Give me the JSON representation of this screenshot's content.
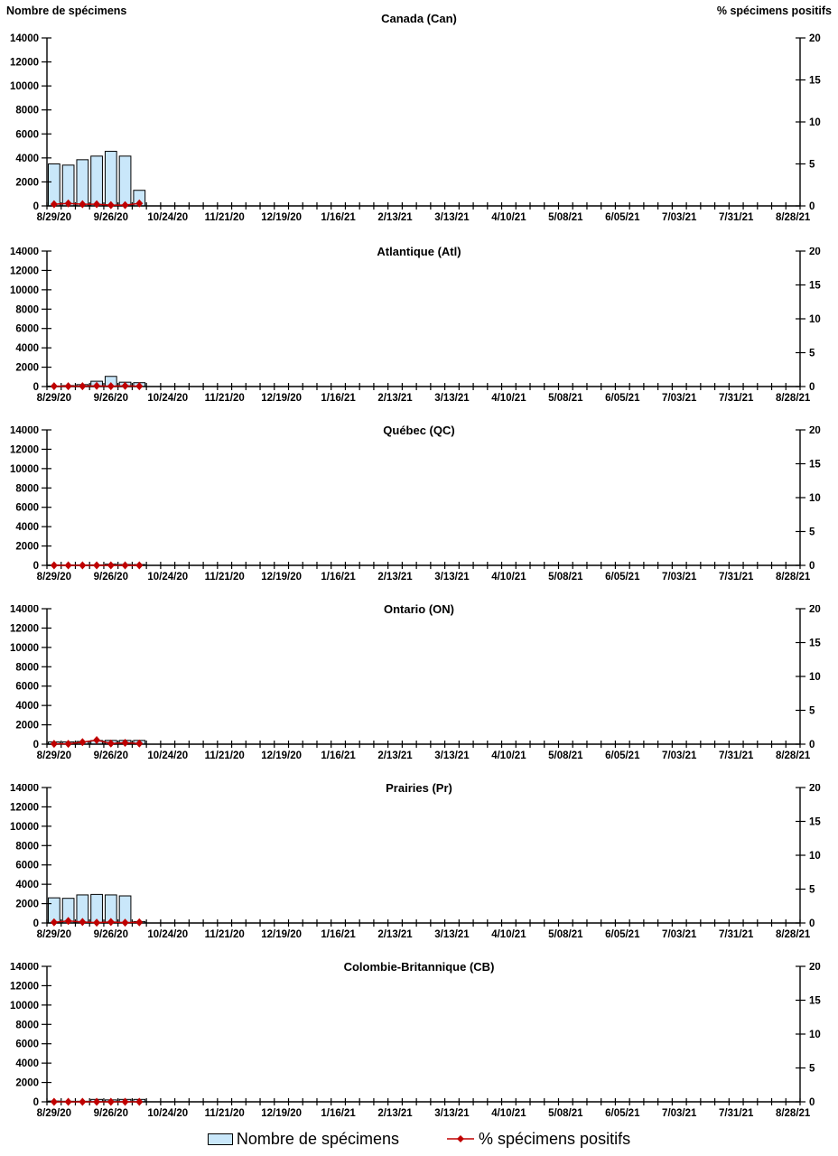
{
  "chart_data": {
    "type": "combo-bar-line",
    "panels_note": "Six stacked weekly surveillance panels sharing identical axes",
    "left_axis": {
      "title": "Nombre de spécimens",
      "min": 0,
      "max": 14000,
      "tick_step": 2000,
      "ticks": [
        0,
        2000,
        4000,
        6000,
        8000,
        10000,
        12000,
        14000
      ]
    },
    "right_axis": {
      "title": "% spécimens positifs",
      "min": 0,
      "max": 20,
      "tick_step": 5,
      "ticks": [
        0,
        5,
        10,
        15,
        20
      ]
    },
    "x_axis": {
      "weeks_total": 53,
      "label_every": 4,
      "labels": [
        "8/29/20",
        "9/26/20",
        "10/24/20",
        "11/21/20",
        "12/19/20",
        "1/16/21",
        "2/13/21",
        "3/13/21",
        "4/10/21",
        "5/08/21",
        "6/05/21",
        "7/03/21",
        "7/31/21",
        "8/28/21"
      ]
    },
    "data_weeks": [
      "8/29/20",
      "9/05/20",
      "9/12/20",
      "9/19/20",
      "9/26/20",
      "10/03/20",
      "10/10/20"
    ],
    "charts": [
      {
        "title": "Canada (Can)",
        "specimens": [
          3500,
          3400,
          3850,
          4150,
          4550,
          4150,
          1300
        ],
        "pct_positive": [
          0.2,
          0.3,
          0.2,
          0.2,
          0.1,
          0.1,
          0.3
        ]
      },
      {
        "title": "Atlantique (Atl)",
        "specimens": [
          50,
          100,
          200,
          550,
          1050,
          450,
          400
        ],
        "pct_positive": [
          0.05,
          0.05,
          0.05,
          0.1,
          0.05,
          0.1,
          0.05
        ]
      },
      {
        "title": "Québec (QC)",
        "specimens": [
          30,
          30,
          40,
          50,
          120,
          90,
          80
        ],
        "pct_positive": [
          0,
          0,
          0,
          0,
          0,
          0,
          0
        ]
      },
      {
        "title": "Ontario (ON)",
        "specimens": [
          230,
          240,
          280,
          380,
          390,
          390,
          390
        ],
        "pct_positive": [
          0.05,
          0.05,
          0.3,
          0.6,
          0.1,
          0.2,
          0.1
        ]
      },
      {
        "title": "Prairies (Pr)",
        "specimens": [
          2600,
          2550,
          2900,
          2950,
          2900,
          2800,
          150
        ],
        "pct_positive": [
          0.1,
          0.3,
          0.15,
          0.05,
          0.15,
          0.05,
          0.1
        ]
      },
      {
        "title": "Colombie-Britannique (CB)",
        "specimens": [
          80,
          60,
          60,
          250,
          200,
          250,
          250
        ],
        "pct_positive": [
          0,
          0,
          0,
          0,
          0,
          0,
          0
        ]
      }
    ],
    "legend": {
      "bars_label": "Nombre de spécimens",
      "line_label": "% spécimens positifs"
    },
    "style": {
      "bar_fill": "#C9E7FA",
      "bar_stroke": "#000000",
      "line_color": "#C00000",
      "text_color": "#000000",
      "background": "#FFFFFF"
    }
  }
}
